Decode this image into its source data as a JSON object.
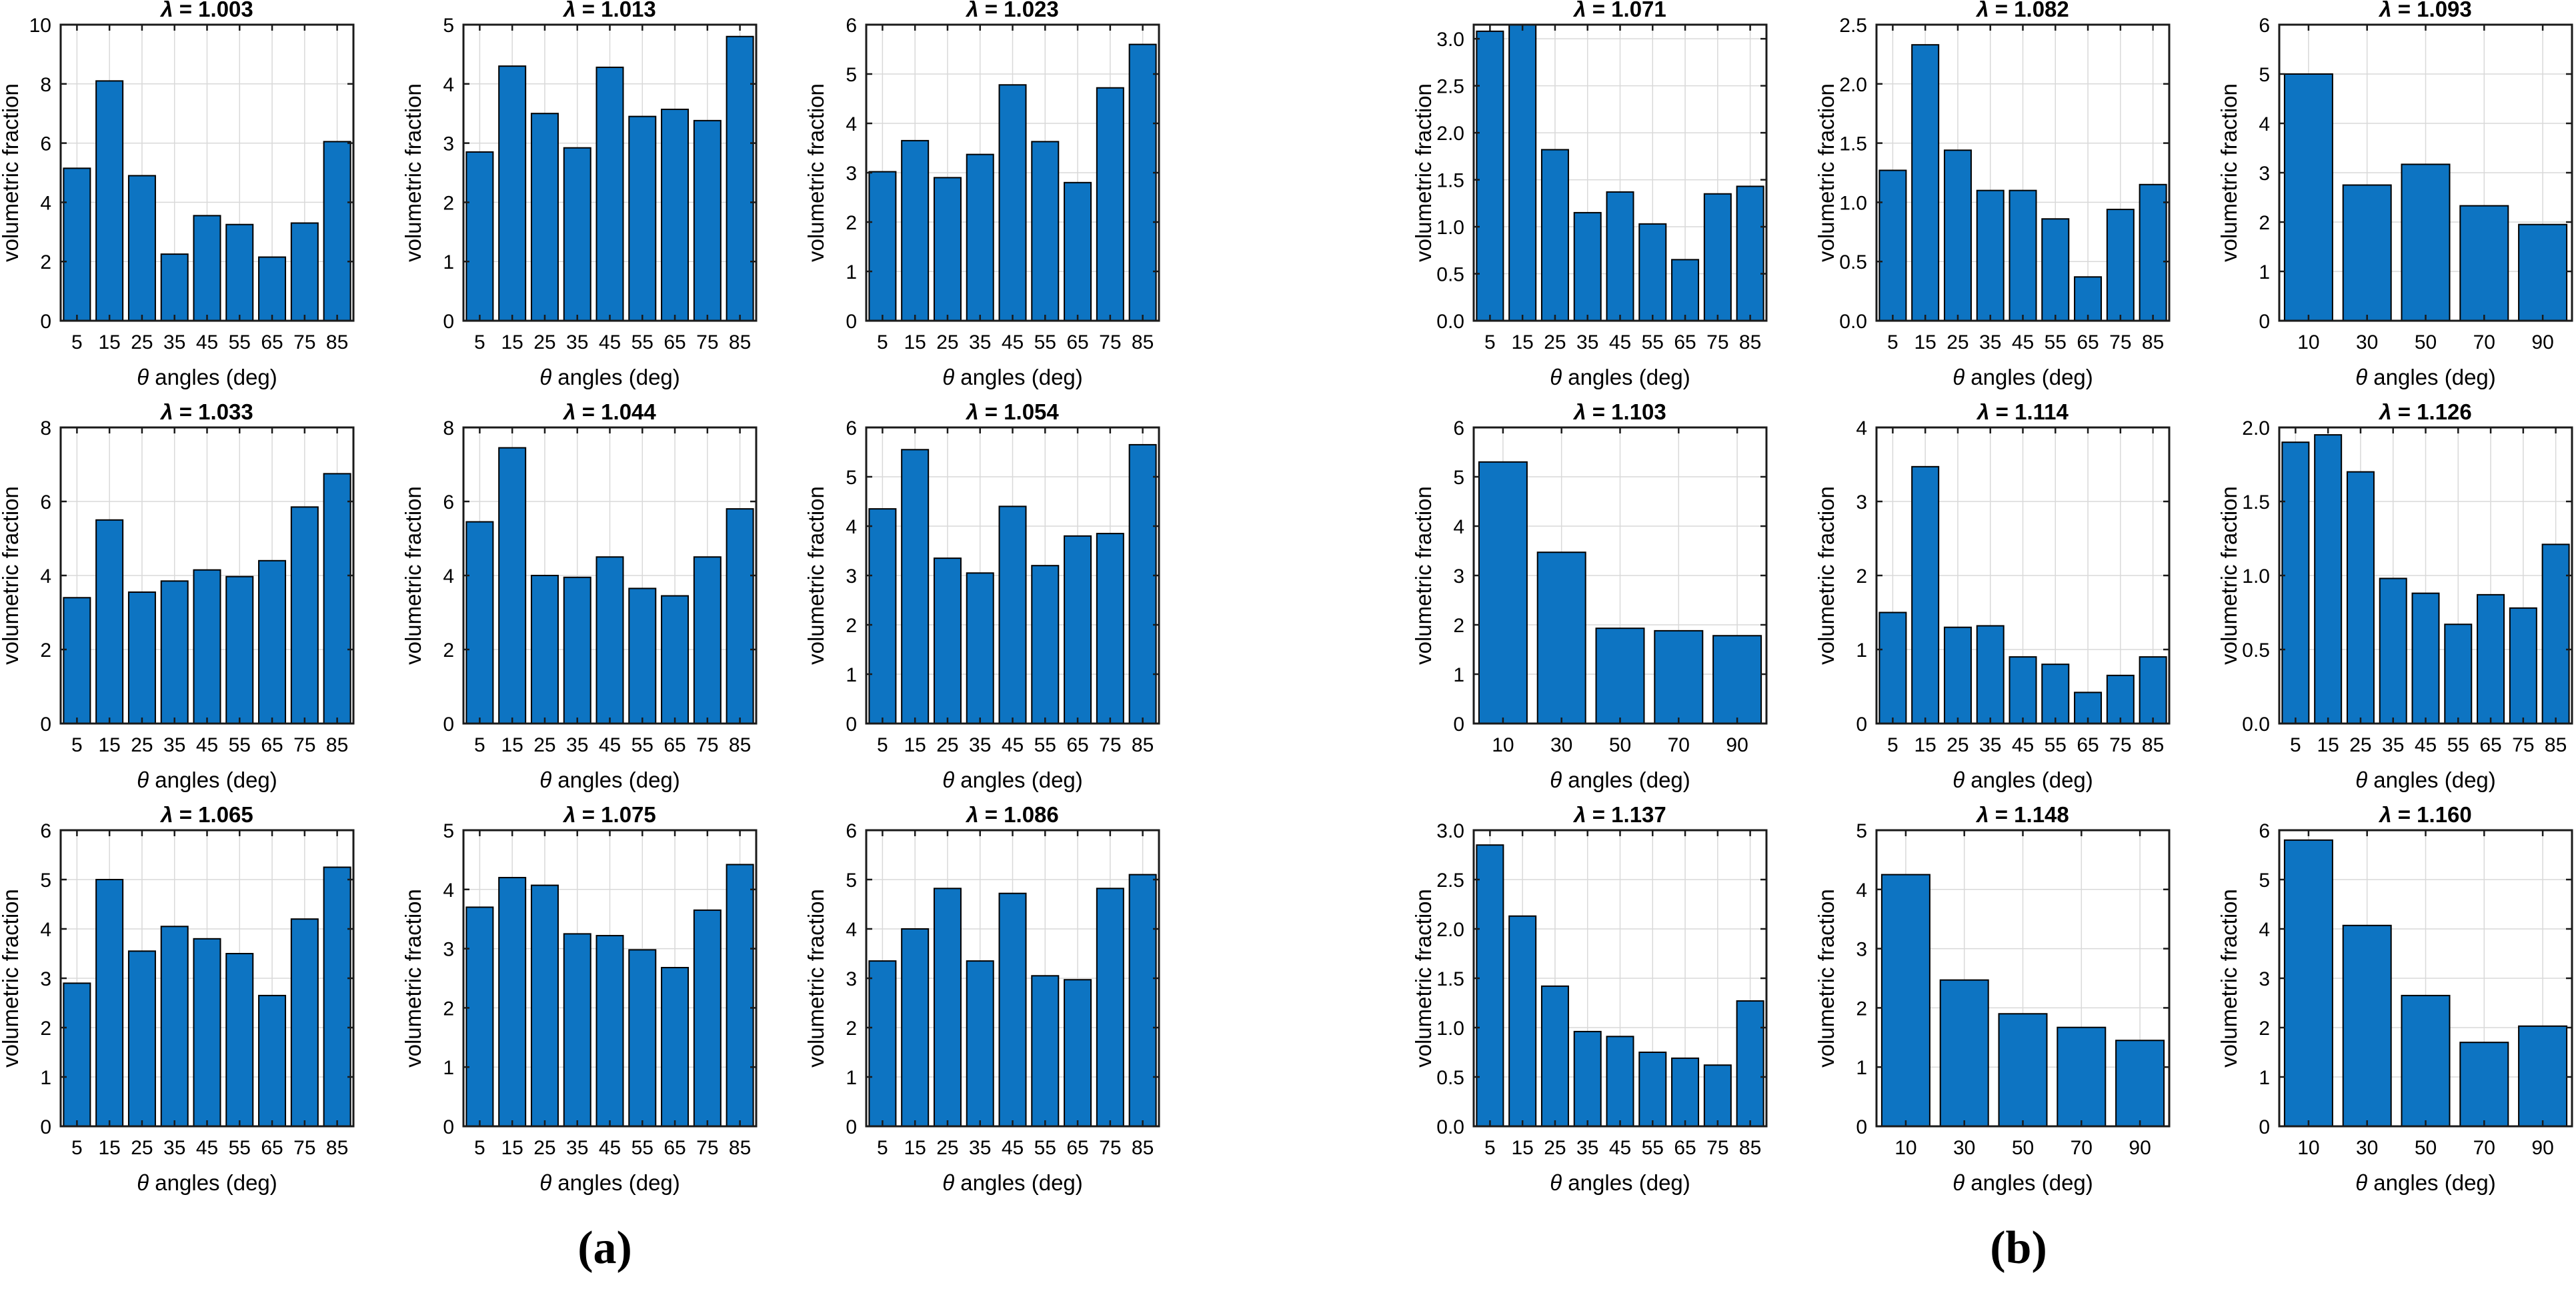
{
  "figure": {
    "panel_a_label": "(a)",
    "panel_b_label": "(b)",
    "bar_color": "#0d74c2",
    "bar_edge_color": "#000000",
    "grid_color": "#d9d9d9",
    "axis_color": "#1a1a1a",
    "ylabel": "volumetric fraction",
    "xlabel_symbol": "θ",
    "xlabel_rest": " angles (deg)",
    "title_symbol": "λ",
    "title_equals": " = "
  },
  "chart_data": [
    {
      "type": "bar",
      "panel": "a",
      "row": 0,
      "col": 0,
      "lambda": "1.003",
      "title": "λ = 1.003",
      "xlabel": "θ angles (deg)",
      "ylabel": "volumetric fraction",
      "categories": [
        5,
        15,
        25,
        35,
        45,
        55,
        65,
        75,
        85
      ],
      "values": [
        5.15,
        8.1,
        4.9,
        2.25,
        3.55,
        3.25,
        2.15,
        3.3,
        6.05
      ],
      "ylim": [
        0,
        10
      ],
      "yticks": [
        0,
        2,
        4,
        6,
        8,
        10
      ],
      "ydecimals": 0
    },
    {
      "type": "bar",
      "panel": "a",
      "row": 0,
      "col": 1,
      "lambda": "1.013",
      "title": "λ = 1.013",
      "xlabel": "θ angles (deg)",
      "ylabel": "volumetric fraction",
      "categories": [
        5,
        15,
        25,
        35,
        45,
        55,
        65,
        75,
        85
      ],
      "values": [
        2.85,
        4.3,
        3.5,
        2.92,
        4.28,
        3.45,
        3.57,
        3.38,
        4.8
      ],
      "ylim": [
        0,
        5
      ],
      "yticks": [
        0,
        1,
        2,
        3,
        4,
        5
      ],
      "ydecimals": 0
    },
    {
      "type": "bar",
      "panel": "a",
      "row": 0,
      "col": 2,
      "lambda": "1.023",
      "title": "λ = 1.023",
      "xlabel": "θ angles (deg)",
      "ylabel": "volumetric fraction",
      "categories": [
        5,
        15,
        25,
        35,
        45,
        55,
        65,
        75,
        85
      ],
      "values": [
        3.02,
        3.65,
        2.9,
        3.37,
        4.78,
        3.63,
        2.8,
        4.72,
        5.6
      ],
      "ylim": [
        0,
        6
      ],
      "yticks": [
        0,
        1,
        2,
        3,
        4,
        5,
        6
      ],
      "ydecimals": 0
    },
    {
      "type": "bar",
      "panel": "a",
      "row": 1,
      "col": 0,
      "lambda": "1.033",
      "title": "λ = 1.033",
      "xlabel": "θ angles (deg)",
      "ylabel": "volumetric fraction",
      "categories": [
        5,
        15,
        25,
        35,
        45,
        55,
        65,
        75,
        85
      ],
      "values": [
        3.4,
        5.5,
        3.55,
        3.85,
        4.15,
        3.97,
        4.4,
        5.85,
        6.75
      ],
      "ylim": [
        0,
        8
      ],
      "yticks": [
        0,
        2,
        4,
        6,
        8
      ],
      "ydecimals": 0
    },
    {
      "type": "bar",
      "panel": "a",
      "row": 1,
      "col": 1,
      "lambda": "1.044",
      "title": "λ = 1.044",
      "xlabel": "θ angles (deg)",
      "ylabel": "volumetric fraction",
      "categories": [
        5,
        15,
        25,
        35,
        45,
        55,
        65,
        75,
        85
      ],
      "values": [
        5.45,
        7.45,
        4.0,
        3.95,
        4.5,
        3.65,
        3.45,
        4.5,
        5.8
      ],
      "ylim": [
        0,
        8
      ],
      "yticks": [
        0,
        2,
        4,
        6,
        8
      ],
      "ydecimals": 0
    },
    {
      "type": "bar",
      "panel": "a",
      "row": 1,
      "col": 2,
      "lambda": "1.054",
      "title": "λ = 1.054",
      "xlabel": "θ angles (deg)",
      "ylabel": "volumetric fraction",
      "categories": [
        5,
        15,
        25,
        35,
        45,
        55,
        65,
        75,
        85
      ],
      "values": [
        4.35,
        5.55,
        3.35,
        3.05,
        4.4,
        3.2,
        3.8,
        3.85,
        5.65
      ],
      "ylim": [
        0,
        6
      ],
      "yticks": [
        0,
        1,
        2,
        3,
        4,
        5,
        6
      ],
      "ydecimals": 0
    },
    {
      "type": "bar",
      "panel": "a",
      "row": 2,
      "col": 0,
      "lambda": "1.065",
      "title": "λ = 1.065",
      "xlabel": "θ angles (deg)",
      "ylabel": "volumetric fraction",
      "categories": [
        5,
        15,
        25,
        35,
        45,
        55,
        65,
        75,
        85
      ],
      "values": [
        2.9,
        5.0,
        3.55,
        4.05,
        3.8,
        3.5,
        2.65,
        4.2,
        5.25
      ],
      "ylim": [
        0,
        6
      ],
      "yticks": [
        0,
        1,
        2,
        3,
        4,
        5,
        6
      ],
      "ydecimals": 0
    },
    {
      "type": "bar",
      "panel": "a",
      "row": 2,
      "col": 1,
      "lambda": "1.075",
      "title": "λ = 1.075",
      "xlabel": "θ angles (deg)",
      "ylabel": "volumetric fraction",
      "categories": [
        5,
        15,
        25,
        35,
        45,
        55,
        65,
        75,
        85
      ],
      "values": [
        3.7,
        4.2,
        4.07,
        3.25,
        3.22,
        2.98,
        2.68,
        3.65,
        4.42
      ],
      "ylim": [
        0,
        5
      ],
      "yticks": [
        0,
        1,
        2,
        3,
        4,
        5
      ],
      "ydecimals": 0
    },
    {
      "type": "bar",
      "panel": "a",
      "row": 2,
      "col": 2,
      "lambda": "1.086",
      "title": "λ = 1.086",
      "xlabel": "θ angles (deg)",
      "ylabel": "volumetric fraction",
      "categories": [
        5,
        15,
        25,
        35,
        45,
        55,
        65,
        75,
        85
      ],
      "values": [
        3.35,
        4.0,
        4.82,
        3.35,
        4.72,
        3.05,
        2.97,
        4.82,
        5.1
      ],
      "ylim": [
        0,
        6
      ],
      "yticks": [
        0,
        1,
        2,
        3,
        4,
        5,
        6
      ],
      "ydecimals": 0
    },
    {
      "type": "bar",
      "panel": "b",
      "row": 0,
      "col": 0,
      "lambda": "1.071",
      "title": "λ = 1.071",
      "xlabel": "θ angles (deg)",
      "ylabel": "volumetric fraction",
      "categories": [
        5,
        15,
        25,
        35,
        45,
        55,
        65,
        75,
        85
      ],
      "values": [
        3.08,
        3.15,
        1.82,
        1.15,
        1.37,
        1.03,
        0.65,
        1.35,
        1.43
      ],
      "ylim": [
        0,
        3.15
      ],
      "yticks": [
        0,
        0.5,
        1,
        1.5,
        2,
        2.5,
        3
      ],
      "ydecimals": 1
    },
    {
      "type": "bar",
      "panel": "b",
      "row": 0,
      "col": 1,
      "lambda": "1.082",
      "title": "λ = 1.082",
      "xlabel": "θ angles (deg)",
      "ylabel": "volumetric fraction",
      "categories": [
        5,
        15,
        25,
        35,
        45,
        55,
        65,
        75,
        85
      ],
      "values": [
        1.27,
        2.33,
        1.44,
        1.1,
        1.1,
        0.86,
        0.37,
        0.94,
        1.15
      ],
      "ylim": [
        0,
        2.5
      ],
      "yticks": [
        0,
        0.5,
        1,
        1.5,
        2,
        2.5
      ],
      "ydecimals": 1
    },
    {
      "type": "bar",
      "panel": "b",
      "row": 0,
      "col": 2,
      "lambda": "1.093",
      "title": "λ = 1.093",
      "xlabel": "θ angles (deg)",
      "ylabel": "volumetric fraction",
      "categories": [
        10,
        30,
        50,
        70,
        90
      ],
      "values": [
        5.0,
        2.75,
        3.17,
        2.33,
        1.95
      ],
      "ylim": [
        0,
        6
      ],
      "yticks": [
        0,
        1,
        2,
        3,
        4,
        5,
        6
      ],
      "ydecimals": 0
    },
    {
      "type": "bar",
      "panel": "b",
      "row": 1,
      "col": 0,
      "lambda": "1.103",
      "title": "λ = 1.103",
      "xlabel": "θ angles (deg)",
      "ylabel": "volumetric fraction",
      "categories": [
        10,
        30,
        50,
        70,
        90
      ],
      "values": [
        5.3,
        3.47,
        1.93,
        1.88,
        1.78
      ],
      "ylim": [
        0,
        6
      ],
      "yticks": [
        0,
        1,
        2,
        3,
        4,
        5,
        6
      ],
      "ydecimals": 0
    },
    {
      "type": "bar",
      "panel": "b",
      "row": 1,
      "col": 1,
      "lambda": "1.114",
      "title": "λ = 1.114",
      "xlabel": "θ angles (deg)",
      "ylabel": "volumetric fraction",
      "categories": [
        5,
        15,
        25,
        35,
        45,
        55,
        65,
        75,
        85
      ],
      "values": [
        1.5,
        3.47,
        1.3,
        1.32,
        0.9,
        0.8,
        0.42,
        0.65,
        0.9
      ],
      "ylim": [
        0,
        4
      ],
      "yticks": [
        0,
        1,
        2,
        3,
        4
      ],
      "ydecimals": 0
    },
    {
      "type": "bar",
      "panel": "b",
      "row": 1,
      "col": 2,
      "lambda": "1.126",
      "title": "λ = 1.126",
      "xlabel": "θ angles (deg)",
      "ylabel": "volumetric fraction",
      "categories": [
        5,
        15,
        25,
        35,
        45,
        55,
        65,
        75,
        85
      ],
      "values": [
        1.9,
        1.95,
        1.7,
        0.98,
        0.88,
        0.67,
        0.87,
        0.78,
        1.21
      ],
      "ylim": [
        0,
        2
      ],
      "yticks": [
        0,
        0.5,
        1,
        1.5,
        2
      ],
      "ydecimals": 1
    },
    {
      "type": "bar",
      "panel": "b",
      "row": 2,
      "col": 0,
      "lambda": "1.137",
      "title": "λ = 1.137",
      "xlabel": "θ angles (deg)",
      "ylabel": "volumetric fraction",
      "categories": [
        5,
        15,
        25,
        35,
        45,
        55,
        65,
        75,
        85
      ],
      "values": [
        2.85,
        2.13,
        1.42,
        0.96,
        0.91,
        0.75,
        0.69,
        0.62,
        1.27
      ],
      "ylim": [
        0,
        3
      ],
      "yticks": [
        0,
        0.5,
        1,
        1.5,
        2,
        2.5,
        3
      ],
      "ydecimals": 1
    },
    {
      "type": "bar",
      "panel": "b",
      "row": 2,
      "col": 1,
      "lambda": "1.148",
      "title": "λ = 1.148",
      "xlabel": "θ angles (deg)",
      "ylabel": "volumetric fraction",
      "categories": [
        10,
        30,
        50,
        70,
        90
      ],
      "values": [
        4.25,
        2.47,
        1.9,
        1.67,
        1.45
      ],
      "ylim": [
        0,
        5
      ],
      "yticks": [
        0,
        1,
        2,
        3,
        4,
        5
      ],
      "ydecimals": 0
    },
    {
      "type": "bar",
      "panel": "b",
      "row": 2,
      "col": 2,
      "lambda": "1.160",
      "title": "λ = 1.160",
      "xlabel": "θ angles (deg)",
      "ylabel": "volumetric fraction",
      "categories": [
        10,
        30,
        50,
        70,
        90
      ],
      "values": [
        5.8,
        4.07,
        2.65,
        1.7,
        2.03
      ],
      "ylim": [
        0,
        6
      ],
      "yticks": [
        0,
        1,
        2,
        3,
        4,
        5,
        6
      ],
      "ydecimals": 0
    }
  ]
}
